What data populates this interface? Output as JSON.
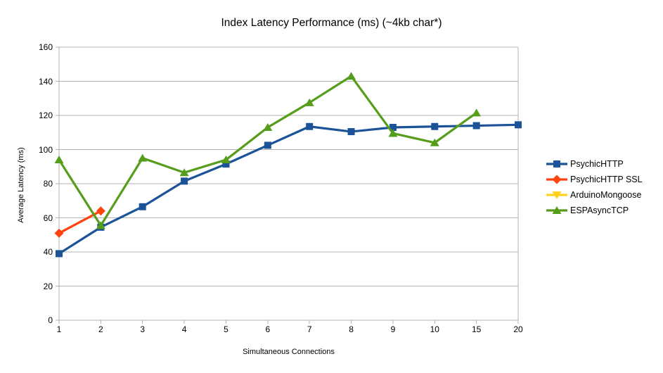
{
  "colors": {
    "background": "#ffffff",
    "grid": "#b3b3b3",
    "axis": "#b3b3b3",
    "text": "#000000"
  },
  "chart_data": {
    "type": "line",
    "title": "Index Latency Performance (ms) (~4kb char*)",
    "xlabel": "Simultaneous Connections",
    "ylabel": "Average Latency (ms)",
    "x_categories": [
      "1",
      "2",
      "3",
      "4",
      "5",
      "6",
      "7",
      "8",
      "9",
      "10",
      "15",
      "20"
    ],
    "y_ticks": [
      0,
      20,
      40,
      60,
      80,
      100,
      120,
      140,
      160
    ],
    "ylim": [
      0,
      160
    ],
    "grid": "horizontal",
    "legend_position": "right",
    "series": [
      {
        "name": "PsychicHTTP",
        "color": "#1b5298",
        "marker": "square",
        "values": [
          39,
          54.5,
          66.5,
          81.5,
          91.5,
          102.5,
          113.5,
          110.5,
          113,
          113.5,
          114,
          114.5
        ]
      },
      {
        "name": "PsychicHTTP SSL",
        "color": "#ff420e",
        "marker": "diamond",
        "values": [
          51,
          64,
          null,
          null,
          null,
          null,
          null,
          null,
          null,
          null,
          null,
          null
        ]
      },
      {
        "name": "ArduinoMongoose",
        "color": "#ffd320",
        "marker": "triangle-down",
        "values": [
          null,
          null,
          null,
          null,
          null,
          null,
          null,
          null,
          null,
          null,
          null,
          null
        ]
      },
      {
        "name": "ESPAsyncTCP",
        "color": "#579d1c",
        "marker": "triangle-up",
        "values": [
          94,
          55.5,
          95,
          86.5,
          94,
          113,
          127.5,
          143,
          109.5,
          104,
          121.5,
          null
        ]
      }
    ]
  }
}
